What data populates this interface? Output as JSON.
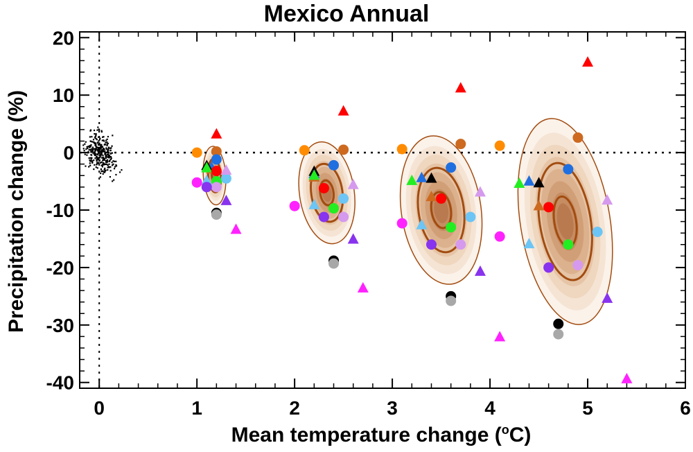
{
  "chart_data": {
    "type": "scatter",
    "title": "Mexico Annual",
    "xlabel": "Mean temperature change (",
    "xlabel_sup": "o",
    "xlabel_end": "C)",
    "ylabel": "Precipitation change (%)",
    "xlim": [
      -0.2,
      6
    ],
    "ylim": [
      -41,
      21
    ],
    "x_ticks": [
      0,
      1,
      2,
      3,
      4,
      5,
      6
    ],
    "y_ticks": [
      -40,
      -30,
      -20,
      -10,
      0,
      10,
      20
    ],
    "x_tick_labels": [
      "0",
      "1",
      "2",
      "3",
      "4",
      "5",
      "6"
    ],
    "y_tick_labels": [
      "-40",
      "-30",
      "-20",
      "-10",
      "0",
      "10",
      "20"
    ],
    "reference_lines": {
      "x": 0,
      "y": 0,
      "style": "dotted"
    },
    "colors": {
      "orange": "#ff8c00",
      "brown": "#cd6a20",
      "blue": "#1f6fe0",
      "lightblue": "#6cc5f5",
      "black": "#000000",
      "gray": "#a8a8a8",
      "green": "#22ee22",
      "red": "#ff0000",
      "magenta": "#ff22ff",
      "lightpurple": "#d59aee",
      "purple": "#8833ee"
    },
    "control_cloud": {
      "center": [
        0,
        0
      ],
      "x_spread": 0.08,
      "y_spread": 1.6,
      "count": 320
    },
    "distributions": [
      {
        "cx": 1.18,
        "cy": -4,
        "sx": 0.045,
        "sy": 2.0,
        "rot": 0.02
      },
      {
        "cx": 2.33,
        "cy": -7,
        "sx": 0.11,
        "sy": 3.5,
        "rot": 0.045
      },
      {
        "cx": 3.5,
        "cy": -10,
        "sx": 0.16,
        "sy": 5.1,
        "rot": 0.045
      },
      {
        "cx": 4.77,
        "cy": -12,
        "sx": 0.18,
        "sy": 7.1,
        "rot": 0.05
      }
    ],
    "series": [
      {
        "name": "orange",
        "color": "orange",
        "marker": "circle",
        "points": [
          [
            1.0,
            0.0
          ],
          [
            2.1,
            0.4
          ],
          [
            3.1,
            0.6
          ],
          [
            4.1,
            1.2
          ]
        ]
      },
      {
        "name": "brown circle",
        "color": "brown",
        "marker": "circle",
        "points": [
          [
            1.2,
            0.2
          ],
          [
            2.5,
            0.5
          ],
          [
            3.7,
            1.5
          ],
          [
            4.9,
            2.6
          ]
        ]
      },
      {
        "name": "brown triangle",
        "color": "brown",
        "marker": "triangle",
        "points": [
          [
            1.15,
            -2.8
          ],
          [
            2.2,
            -4.2
          ],
          [
            3.4,
            -7.6
          ],
          [
            4.5,
            -9.2
          ]
        ]
      },
      {
        "name": "blue circle",
        "color": "blue",
        "marker": "circle",
        "points": [
          [
            1.2,
            -1.2
          ],
          [
            2.4,
            -2.2
          ],
          [
            3.6,
            -2.6
          ],
          [
            4.8,
            -2.9
          ]
        ]
      },
      {
        "name": "blue triangle",
        "color": "blue",
        "marker": "triangle",
        "points": [
          [
            1.15,
            -2.5
          ],
          [
            2.2,
            -3.6
          ],
          [
            3.3,
            -4.3
          ],
          [
            4.4,
            -4.9
          ]
        ]
      },
      {
        "name": "black triangle",
        "color": "black",
        "marker": "triangle",
        "points": [
          [
            1.1,
            -2.2
          ],
          [
            2.2,
            -3.2
          ],
          [
            3.4,
            -4.4
          ],
          [
            4.5,
            -5.2
          ]
        ]
      },
      {
        "name": "green triangle",
        "color": "green",
        "marker": "triangle",
        "points": [
          [
            1.1,
            -2.6
          ],
          [
            2.2,
            -3.9
          ],
          [
            3.2,
            -4.8
          ],
          [
            4.3,
            -5.3
          ]
        ]
      },
      {
        "name": "red circle",
        "color": "red",
        "marker": "circle",
        "points": [
          [
            1.2,
            -3.2
          ],
          [
            2.3,
            -6.2
          ],
          [
            3.5,
            -8.0
          ],
          [
            4.6,
            -9.5
          ]
        ]
      },
      {
        "name": "red triangle",
        "color": "red",
        "marker": "triangle",
        "points": [
          [
            1.2,
            3.3
          ],
          [
            2.5,
            7.3
          ],
          [
            3.7,
            11.3
          ],
          [
            5.0,
            15.8
          ]
        ]
      },
      {
        "name": "green circle",
        "color": "green",
        "marker": "circle",
        "points": [
          [
            1.2,
            -5.0
          ],
          [
            2.4,
            -9.7
          ],
          [
            3.6,
            -13.0
          ],
          [
            4.8,
            -16.0
          ]
        ]
      },
      {
        "name": "lightblue circle",
        "color": "lightblue",
        "marker": "circle",
        "points": [
          [
            1.3,
            -4.5
          ],
          [
            2.5,
            -8.0
          ],
          [
            3.8,
            -11.2
          ],
          [
            5.1,
            -13.8
          ]
        ]
      },
      {
        "name": "lightblue triangle",
        "color": "lightblue",
        "marker": "triangle",
        "points": [
          [
            1.1,
            -4.8
          ],
          [
            2.2,
            -9.0
          ],
          [
            3.3,
            -12.5
          ],
          [
            4.4,
            -15.8
          ]
        ]
      },
      {
        "name": "lightpurple circle",
        "color": "lightpurple",
        "marker": "circle",
        "points": [
          [
            1.2,
            -6.0
          ],
          [
            2.5,
            -11.2
          ],
          [
            3.7,
            -16.0
          ],
          [
            4.9,
            -19.6
          ]
        ]
      },
      {
        "name": "lightpurple triangle",
        "color": "lightpurple",
        "marker": "triangle",
        "points": [
          [
            1.3,
            -3.0
          ],
          [
            2.6,
            -5.5
          ],
          [
            3.9,
            -6.8
          ],
          [
            5.2,
            -8.2
          ]
        ]
      },
      {
        "name": "magenta circle",
        "color": "magenta",
        "marker": "circle",
        "points": [
          [
            1.0,
            -5.2
          ],
          [
            2.0,
            -9.3
          ],
          [
            3.1,
            -12.3
          ],
          [
            4.1,
            -14.6
          ]
        ]
      },
      {
        "name": "magenta triangle",
        "color": "magenta",
        "marker": "triangle",
        "points": [
          [
            1.4,
            -13.3
          ],
          [
            2.7,
            -23.5
          ],
          [
            4.1,
            -32.0
          ],
          [
            5.4,
            -39.3
          ]
        ]
      },
      {
        "name": "purple circle",
        "color": "purple",
        "marker": "circle",
        "points": [
          [
            1.1,
            -6.0
          ],
          [
            2.3,
            -11.2
          ],
          [
            3.4,
            -16.0
          ],
          [
            4.6,
            -20.0
          ]
        ]
      },
      {
        "name": "purple triangle",
        "color": "purple",
        "marker": "triangle",
        "points": [
          [
            1.3,
            -8.3
          ],
          [
            2.6,
            -15.0
          ],
          [
            3.9,
            -20.6
          ],
          [
            5.2,
            -25.3
          ]
        ]
      },
      {
        "name": "black circle",
        "color": "black",
        "marker": "circle",
        "points": [
          [
            1.2,
            -10.5
          ],
          [
            2.4,
            -18.8
          ],
          [
            3.6,
            -25.0
          ],
          [
            4.7,
            -29.8
          ]
        ]
      },
      {
        "name": "gray circle",
        "color": "gray",
        "marker": "circle",
        "points": [
          [
            1.2,
            -10.8
          ],
          [
            2.4,
            -19.3
          ],
          [
            3.6,
            -25.8
          ],
          [
            4.7,
            -31.6
          ]
        ]
      }
    ]
  }
}
